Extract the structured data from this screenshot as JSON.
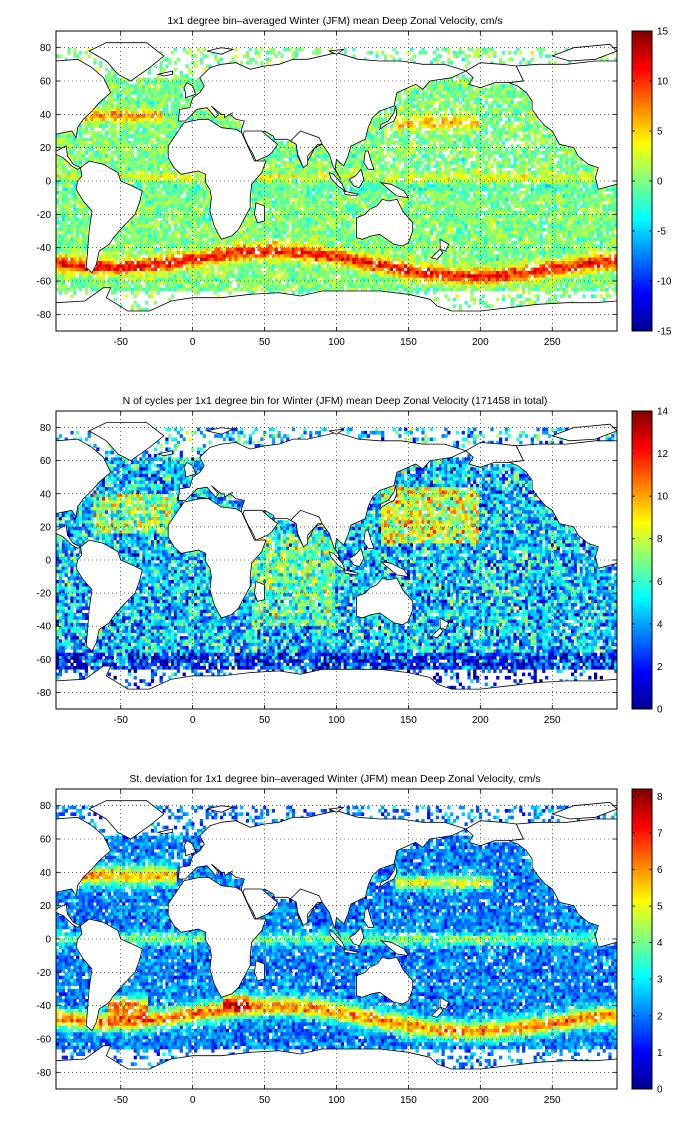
{
  "figure": {
    "panels": [
      {
        "id": "mean-velocity",
        "title": "1x1 degree bin–averaged Winter (JFM) mean Deep Zonal Velocity, cm/s",
        "colorbar": {
          "min": -15,
          "max": 15,
          "ticks": [
            "15",
            "10",
            "5",
            "0",
            "-5",
            "-10",
            "-15"
          ]
        },
        "pattern": "velocity"
      },
      {
        "id": "cycle-count",
        "title": "N of cycles per 1x1 degree bin for Winter (JFM) mean Deep Zonal Velocity (171458 in total)",
        "colorbar": {
          "min": 0,
          "max": 14,
          "ticks": [
            "14",
            "12",
            "10",
            "8",
            "6",
            "4",
            "2",
            "0"
          ]
        },
        "pattern": "count"
      },
      {
        "id": "std-deviation",
        "title": "St. deviation for 1x1 degree bin–averaged Winter (JFM) mean Deep Zonal Velocity, cm/s",
        "colorbar": {
          "min": 0,
          "max": 8.2,
          "ticks": [
            "8",
            "7",
            "6",
            "5",
            "4",
            "3",
            "2",
            "1",
            "0"
          ]
        },
        "pattern": "std"
      }
    ],
    "x_axis": {
      "range": [
        -95,
        295
      ],
      "ticks": [
        "-50",
        "0",
        "50",
        "100",
        "150",
        "200",
        "250"
      ]
    },
    "y_axis": {
      "range": [
        -90,
        90
      ],
      "ticks": [
        "80",
        "60",
        "40",
        "20",
        "0",
        "-20",
        "-40",
        "-60",
        "-80"
      ]
    },
    "grid": "dotted",
    "colormap": "jet",
    "land_color": "#ffffff",
    "coast_color": "#000000"
  }
}
